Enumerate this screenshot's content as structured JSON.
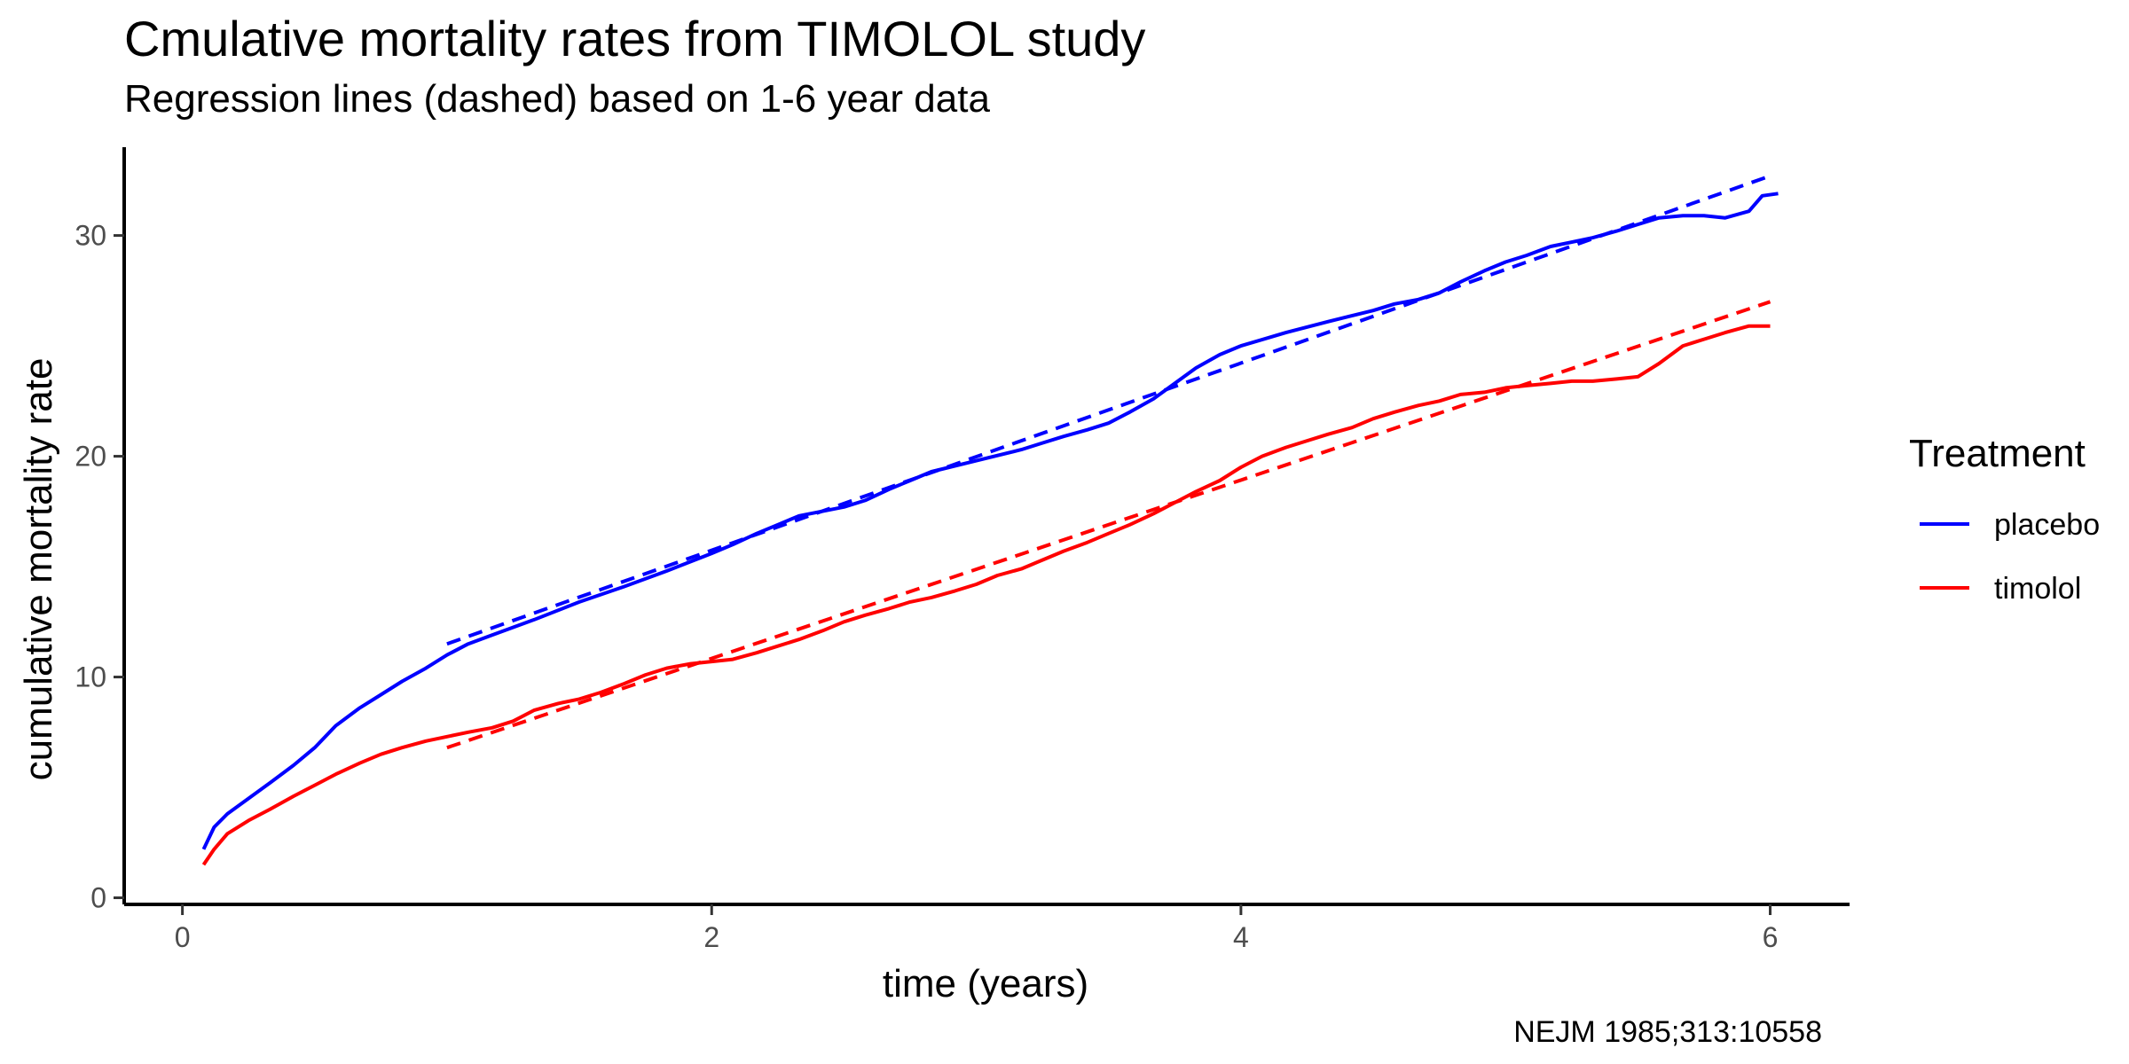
{
  "chart_data": {
    "type": "line",
    "title": "Cmulative mortality rates from TIMOLOL study",
    "subtitle": "Regression lines (dashed) based on 1-6 year  data",
    "caption": "NEJM 1985;313:10558",
    "xlabel": "time (years)",
    "ylabel": "cumulative mortality rate",
    "xlim": [
      -0.22,
      6.3
    ],
    "ylim": [
      -0.3,
      34
    ],
    "xticks": [
      0,
      2,
      4,
      6
    ],
    "yticks": [
      0,
      10,
      20,
      30
    ],
    "grid": false,
    "legend": {
      "title": "Treatment",
      "position": "right"
    },
    "series": [
      {
        "name": "placebo",
        "color": "#0000ff",
        "style": "solid",
        "x": [
          0.08,
          0.12,
          0.17,
          0.25,
          0.33,
          0.42,
          0.5,
          0.58,
          0.67,
          0.75,
          0.83,
          0.92,
          1.0,
          1.08,
          1.17,
          1.33,
          1.5,
          1.67,
          1.83,
          2.0,
          2.08,
          2.17,
          2.25,
          2.33,
          2.5,
          2.58,
          2.67,
          2.75,
          2.83,
          3.0,
          3.17,
          3.25,
          3.33,
          3.42,
          3.5,
          3.58,
          3.67,
          3.75,
          3.83,
          3.92,
          4.0,
          4.17,
          4.33,
          4.5,
          4.58,
          4.67,
          4.75,
          4.83,
          4.92,
          5.0,
          5.08,
          5.17,
          5.25,
          5.33,
          5.42,
          5.5,
          5.58,
          5.67,
          5.75,
          5.83,
          5.92,
          5.97,
          6.03
        ],
        "y": [
          2.2,
          3.2,
          3.8,
          4.5,
          5.2,
          6.0,
          6.8,
          7.8,
          8.6,
          9.2,
          9.8,
          10.4,
          11.0,
          11.5,
          11.9,
          12.6,
          13.4,
          14.1,
          14.8,
          15.6,
          16.0,
          16.5,
          16.9,
          17.3,
          17.7,
          18.0,
          18.5,
          18.9,
          19.3,
          19.8,
          20.3,
          20.6,
          20.9,
          21.2,
          21.5,
          22.0,
          22.6,
          23.3,
          24.0,
          24.6,
          25.0,
          25.6,
          26.1,
          26.6,
          26.9,
          27.1,
          27.4,
          27.9,
          28.4,
          28.8,
          29.1,
          29.5,
          29.7,
          29.9,
          30.2,
          30.5,
          30.8,
          30.9,
          30.9,
          30.8,
          31.1,
          31.8,
          31.9
        ]
      },
      {
        "name": "timolol",
        "color": "#ff0000",
        "style": "solid",
        "x": [
          0.08,
          0.12,
          0.17,
          0.25,
          0.33,
          0.42,
          0.5,
          0.58,
          0.67,
          0.75,
          0.83,
          0.92,
          1.0,
          1.08,
          1.17,
          1.25,
          1.33,
          1.42,
          1.5,
          1.58,
          1.67,
          1.75,
          1.83,
          1.92,
          2.0,
          2.08,
          2.17,
          2.25,
          2.33,
          2.42,
          2.5,
          2.58,
          2.67,
          2.75,
          2.83,
          2.92,
          3.0,
          3.08,
          3.17,
          3.25,
          3.33,
          3.42,
          3.5,
          3.58,
          3.67,
          3.75,
          3.83,
          3.92,
          4.0,
          4.08,
          4.17,
          4.25,
          4.33,
          4.42,
          4.5,
          4.58,
          4.67,
          4.75,
          4.83,
          4.92,
          5.0,
          5.08,
          5.17,
          5.25,
          5.33,
          5.42,
          5.5,
          5.58,
          5.67,
          5.75,
          5.83,
          5.92,
          6.0
        ],
        "y": [
          1.5,
          2.2,
          2.9,
          3.5,
          4.0,
          4.6,
          5.1,
          5.6,
          6.1,
          6.5,
          6.8,
          7.1,
          7.3,
          7.5,
          7.7,
          8.0,
          8.5,
          8.8,
          9.0,
          9.3,
          9.7,
          10.1,
          10.4,
          10.6,
          10.7,
          10.8,
          11.1,
          11.4,
          11.7,
          12.1,
          12.5,
          12.8,
          13.1,
          13.4,
          13.6,
          13.9,
          14.2,
          14.6,
          14.9,
          15.3,
          15.7,
          16.1,
          16.5,
          16.9,
          17.4,
          17.9,
          18.4,
          18.9,
          19.5,
          20.0,
          20.4,
          20.7,
          21.0,
          21.3,
          21.7,
          22.0,
          22.3,
          22.5,
          22.8,
          22.9,
          23.1,
          23.2,
          23.3,
          23.4,
          23.4,
          23.5,
          23.6,
          24.2,
          25.0,
          25.3,
          25.6,
          25.9,
          25.9
        ]
      },
      {
        "name": "",
        "color": "#0000ff",
        "style": "dashed",
        "x": [
          1.0,
          6.0
        ],
        "y": [
          11.5,
          32.7
        ]
      },
      {
        "name": "",
        "color": "#ff0000",
        "style": "dashed",
        "x": [
          1.0,
          6.0
        ],
        "y": [
          6.8,
          27.0
        ]
      }
    ]
  }
}
